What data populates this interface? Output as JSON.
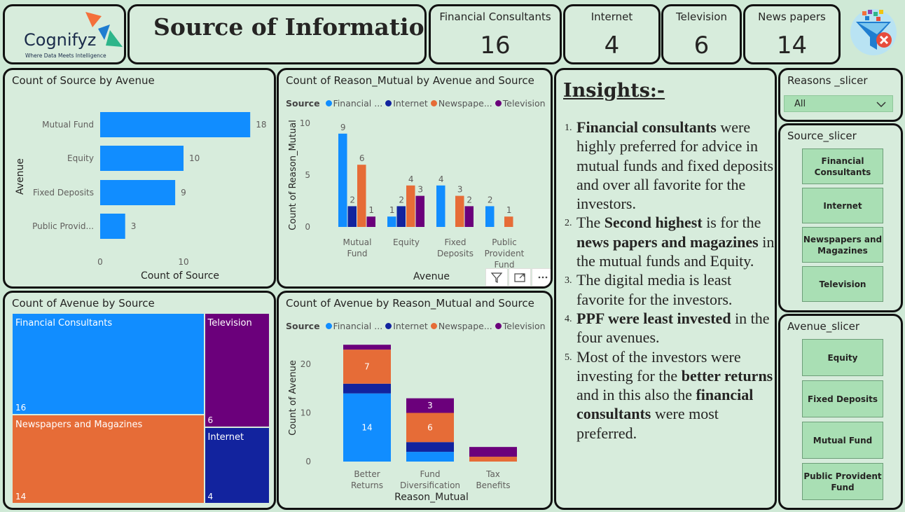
{
  "brand": {
    "name": "Cognifyz",
    "tagline": "Where Data Meets Intelligence",
    "colors": [
      "#f4703b",
      "#1f7dd0",
      "#2eb58a"
    ]
  },
  "header": {
    "title": "Source of Information"
  },
  "kpis": [
    {
      "label": "Financial Consultants",
      "value": "16"
    },
    {
      "label": "Internet",
      "value": "4"
    },
    {
      "label": "Television",
      "value": "6"
    },
    {
      "label": "News papers",
      "value": "14"
    }
  ],
  "clear_filters_icon": "funnel-clear-icon",
  "legend": {
    "title": "Source",
    "items": [
      {
        "label": "Financial ...",
        "color": "#118dff"
      },
      {
        "label": "Internet",
        "color": "#12239e"
      },
      {
        "label": "Newspape...",
        "color": "#e66c37"
      },
      {
        "label": "Television",
        "color": "#6b007b"
      }
    ]
  },
  "visual_header": {
    "filter_icon": "filter-icon",
    "focus_icon": "focus-mode-icon",
    "more_icon": "more-options-icon"
  },
  "chart_data": [
    {
      "type": "bar",
      "orientation": "horizontal",
      "title": "Count of Source by Avenue",
      "categories": [
        "Mutual Fund",
        "Equity",
        "Fixed Deposits",
        "Public Provid..."
      ],
      "values": [
        18,
        10,
        9,
        3
      ],
      "xlabel": "Count of Source",
      "ylabel": "Avenue",
      "xlim": [
        0,
        20
      ],
      "xticks": [
        "0",
        "10"
      ],
      "color": "#118dff"
    },
    {
      "type": "bar",
      "title": "Count of Reason_Mutual by Avenue and Source",
      "categories": [
        "Mutual Fund",
        "Equity",
        "Fixed Deposits",
        "Public Provident Fund"
      ],
      "series": [
        {
          "name": "Financial ...",
          "values": [
            9,
            1,
            4,
            2
          ]
        },
        {
          "name": "Internet",
          "values": [
            2,
            2,
            null,
            null
          ]
        },
        {
          "name": "Newspape...",
          "values": [
            6,
            4,
            3,
            1
          ]
        },
        {
          "name": "Television",
          "values": [
            1,
            3,
            2,
            null
          ]
        }
      ],
      "xlabel": "Avenue",
      "ylabel": "Count of Reason_Mutual",
      "ylim": [
        0,
        10
      ],
      "yticks": [
        "0",
        "5",
        "10"
      ]
    },
    {
      "type": "treemap",
      "title": "Count of Avenue by Source",
      "items": [
        {
          "label": "Financial Consultants",
          "value": 16,
          "color": "#118dff"
        },
        {
          "label": "Newspapers and Magazines",
          "value": 14,
          "color": "#e66c37"
        },
        {
          "label": "Television",
          "value": 6,
          "color": "#6b007b"
        },
        {
          "label": "Internet",
          "value": 4,
          "color": "#12239e"
        }
      ]
    },
    {
      "type": "stacked-bar",
      "title": "Count of Avenue by Reason_Mutual and Source",
      "categories": [
        "Better Returns",
        "Fund Diversification",
        "Tax Benefits"
      ],
      "series": [
        {
          "name": "Financial ...",
          "values": [
            14,
            2,
            0
          ]
        },
        {
          "name": "Internet",
          "values": [
            2,
            2,
            0
          ]
        },
        {
          "name": "Newspape...",
          "values": [
            7,
            6,
            1
          ]
        },
        {
          "name": "Television",
          "values": [
            1,
            3,
            2
          ]
        }
      ],
      "data_labels": [
        {
          "category": "Better Returns",
          "series": "Financial ...",
          "text": "14"
        },
        {
          "category": "Better Returns",
          "series": "Newspape...",
          "text": "7"
        },
        {
          "category": "Fund Diversification",
          "series": "Newspape...",
          "text": "6"
        },
        {
          "category": "Fund Diversification",
          "series": "Television",
          "text": "3"
        }
      ],
      "xlabel": "Reason_Mutual",
      "ylabel": "Count of Avenue",
      "ylim": [
        0,
        25
      ],
      "yticks": [
        "0",
        "10",
        "20"
      ]
    }
  ],
  "insights": {
    "title": "Insights:-",
    "items": [
      {
        "num": "1.",
        "runs": [
          {
            "t": "Financial consultants",
            "b": true
          },
          {
            "t": " were highly preferred for advice in mutual funds and fixed deposits and over all favorite for the investors."
          }
        ]
      },
      {
        "num": "2.",
        "runs": [
          {
            "t": "The "
          },
          {
            "t": "Second highest",
            "b": true
          },
          {
            "t": " is for the "
          },
          {
            "t": "news papers and magazines",
            "b": true
          },
          {
            "t": " in the mutual funds and Equity."
          }
        ]
      },
      {
        "num": "3.",
        "runs": [
          {
            "t": "The digital media is least favorite for the investors."
          }
        ]
      },
      {
        "num": "4.",
        "runs": [
          {
            "t": "PPF were least invested",
            "b": true
          },
          {
            "t": " in the four avenues."
          }
        ]
      },
      {
        "num": "5.",
        "runs": [
          {
            "t": "Most of the investors were investing for the "
          },
          {
            "t": "better returns",
            "b": true
          },
          {
            "t": " and in this also the "
          },
          {
            "t": "financial consultants",
            "b": true
          },
          {
            "t": " were most preferred."
          }
        ]
      }
    ]
  },
  "slicers": {
    "reasons": {
      "title": "Reasons _slicer",
      "selected": "All"
    },
    "source": {
      "title": "Source_slicer",
      "items": [
        "Financial Consultants",
        "Internet",
        "Newspapers and Magazines",
        "Television"
      ]
    },
    "avenue": {
      "title": "Avenue_slicer",
      "items": [
        "Equity",
        "Fixed Deposits",
        "Mutual Fund",
        "Public Provident Fund"
      ]
    }
  }
}
